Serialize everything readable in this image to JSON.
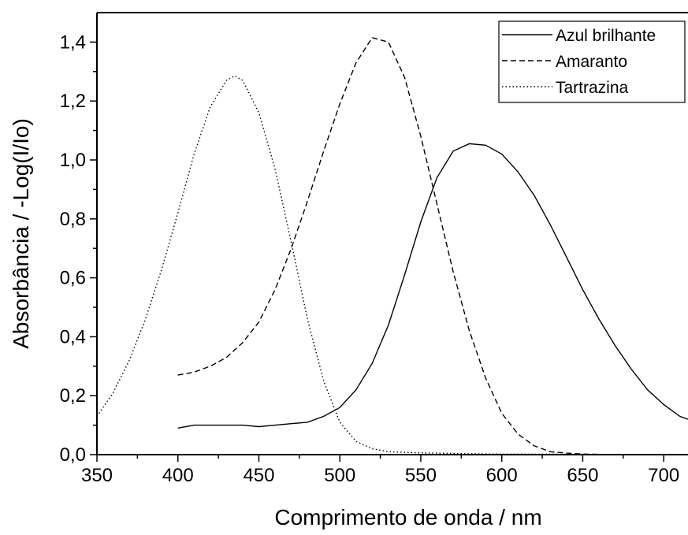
{
  "chart_data": {
    "type": "line",
    "title": "",
    "xlabel": "Comprimento de onda / nm",
    "ylabel": "Absorbância / -Log(I/Io)",
    "xlim": [
      350,
      715
    ],
    "ylim": [
      0.0,
      1.5
    ],
    "xticks": [
      350,
      400,
      450,
      500,
      550,
      600,
      650,
      700
    ],
    "xtick_labels": [
      "350",
      "400",
      "450",
      "500",
      "550",
      "600",
      "650",
      "700"
    ],
    "yticks": [
      0.0,
      0.2,
      0.4,
      0.6,
      0.8,
      1.0,
      1.2,
      1.4
    ],
    "ytick_labels": [
      "0,0",
      "0,2",
      "0,4",
      "0,6",
      "0,8",
      "1,0",
      "1,2",
      "1,4"
    ],
    "grid": false,
    "legend_position": "top-right",
    "series": [
      {
        "name": "Azul brilhante",
        "style": "solid",
        "x": [
          400,
          410,
          420,
          430,
          440,
          450,
          460,
          470,
          480,
          490,
          500,
          510,
          520,
          530,
          540,
          550,
          560,
          570,
          580,
          590,
          600,
          610,
          620,
          630,
          640,
          650,
          660,
          670,
          680,
          690,
          700,
          710,
          715
        ],
        "y": [
          0.09,
          0.1,
          0.1,
          0.1,
          0.1,
          0.095,
          0.1,
          0.105,
          0.11,
          0.13,
          0.16,
          0.22,
          0.31,
          0.44,
          0.61,
          0.79,
          0.94,
          1.03,
          1.055,
          1.05,
          1.02,
          0.96,
          0.88,
          0.78,
          0.67,
          0.56,
          0.46,
          0.37,
          0.29,
          0.22,
          0.17,
          0.13,
          0.12
        ]
      },
      {
        "name": "Amaranto",
        "style": "dashed",
        "x": [
          400,
          410,
          420,
          430,
          440,
          450,
          460,
          470,
          480,
          490,
          500,
          510,
          520,
          530,
          540,
          550,
          560,
          570,
          580,
          590,
          600,
          610,
          620,
          630,
          640,
          650,
          660,
          670,
          680,
          690,
          700,
          715
        ],
        "y": [
          0.27,
          0.28,
          0.3,
          0.33,
          0.38,
          0.45,
          0.56,
          0.7,
          0.86,
          1.03,
          1.19,
          1.33,
          1.415,
          1.4,
          1.28,
          1.08,
          0.85,
          0.62,
          0.42,
          0.26,
          0.14,
          0.07,
          0.03,
          0.01,
          0.005,
          0.002,
          0.001,
          0.0,
          0.0,
          0.0,
          0.0,
          0.0
        ]
      },
      {
        "name": "Tartrazina",
        "style": "dotted",
        "x": [
          350,
          360,
          370,
          380,
          390,
          400,
          410,
          420,
          430,
          435,
          440,
          450,
          460,
          470,
          480,
          490,
          500,
          510,
          520,
          530,
          540,
          550,
          560,
          570,
          580,
          600,
          650,
          700,
          715
        ],
        "y": [
          0.13,
          0.21,
          0.32,
          0.46,
          0.63,
          0.82,
          1.02,
          1.18,
          1.27,
          1.285,
          1.27,
          1.16,
          0.97,
          0.72,
          0.46,
          0.25,
          0.11,
          0.045,
          0.02,
          0.01,
          0.008,
          0.006,
          0.005,
          0.004,
          0.003,
          0.002,
          0.001,
          0.0,
          0.0
        ]
      }
    ]
  }
}
